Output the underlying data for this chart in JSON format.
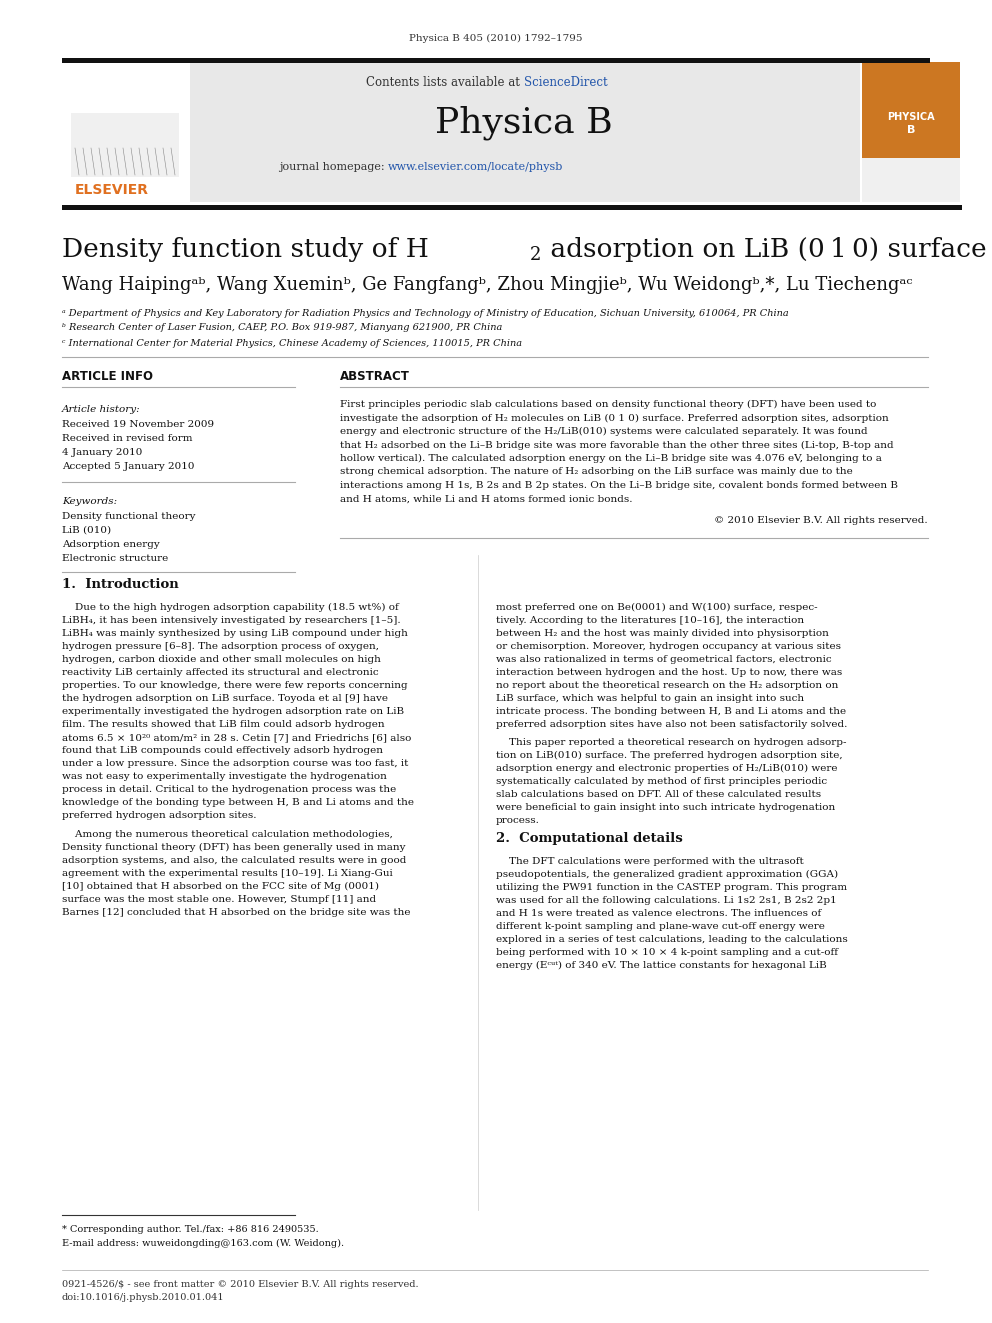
{
  "page_header": "Physica B 405 (2010) 1792–1795",
  "journal_name": "Physica B",
  "journal_url": "www.elsevier.com/locate/physb",
  "contents_text": "Contents lists available at ScienceDirect",
  "affil_a": "ᵃ Department of Physics and Key Laboratory for Radiation Physics and Technology of Ministry of Education, Sichuan University, 610064, PR China",
  "affil_b": "ᵇ Research Center of Laser Fusion, CAEP, P.O. Box 919-987, Mianyang 621900, PR China",
  "affil_c": "ᶜ International Center for Material Physics, Chinese Academy of Sciences, 110015, PR China",
  "article_history_title": "Article history:",
  "received1": "Received 19 November 2009",
  "received2": "Received in revised form",
  "received2b": "4 January 2010",
  "accepted": "Accepted 5 January 2010",
  "keywords_title": "Keywords:",
  "keyword1": "Density functional theory",
  "keyword2": "LiB (010)",
  "keyword3": "Adsorption energy",
  "keyword4": "Electronic structure",
  "copyright": "© 2010 Elsevier B.V. All rights reserved.",
  "section1_title": "1.  Introduction",
  "section2_title": "2.  Computational details",
  "footnote1": "* Corresponding author. Tel./fax: +86 816 2490535.",
  "footnote2": "E-mail address: wuweidongding@163.com (W. Weidong).",
  "footer1": "0921-4526/$ - see front matter © 2010 Elsevier B.V. All rights reserved.",
  "footer2": "doi:10.1016/j.physb.2010.01.041",
  "bg_color": "#ffffff",
  "blue": "#2255aa",
  "orange_elsevier": "#e07020",
  "abstract_lines": [
    "First principles periodic slab calculations based on density functional theory (DFT) have been used to",
    "investigate the adsorption of H₂ molecules on LiB (0 1 0) surface. Preferred adsorption sites, adsorption",
    "energy and electronic structure of the H₂/LiB(010) systems were calculated separately. It was found",
    "that H₂ adsorbed on the Li–B bridge site was more favorable than the other three sites (Li-top, B-top and",
    "hollow vertical). The calculated adsorption energy on the Li–B bridge site was 4.076 eV, belonging to a",
    "strong chemical adsorption. The nature of H₂ adsorbing on the LiB surface was mainly due to the",
    "interactions among H 1s, B 2s and B 2p states. On the Li–B bridge site, covalent bonds formed between B",
    "and H atoms, while Li and H atoms formed ionic bonds."
  ],
  "intro1_lines": [
    "    Due to the high hydrogen adsorption capability (18.5 wt%) of",
    "LiBH₄, it has been intensively investigated by researchers [1–5].",
    "LiBH₄ was mainly synthesized by using LiB compound under high",
    "hydrogen pressure [6–8]. The adsorption process of oxygen,",
    "hydrogen, carbon dioxide and other small molecules on high",
    "reactivity LiB certainly affected its structural and electronic",
    "properties. To our knowledge, there were few reports concerning",
    "the hydrogen adsorption on LiB surface. Toyoda et al [9] have",
    "experimentally investigated the hydrogen adsorption rate on LiB",
    "film. The results showed that LiB film could adsorb hydrogen",
    "atoms 6.5 × 10²⁰ atom/m² in 28 s. Cetin [7] and Friedrichs [6] also",
    "found that LiB compounds could effectively adsorb hydrogen",
    "under a low pressure. Since the adsorption course was too fast, it",
    "was not easy to experimentally investigate the hydrogenation",
    "process in detail. Critical to the hydrogenation process was the",
    "knowledge of the bonding type between H, B and Li atoms and the",
    "preferred hydrogen adsorption sites."
  ],
  "intro2_lines": [
    "    Among the numerous theoretical calculation methodologies,",
    "Density functional theory (DFT) has been generally used in many",
    "adsorption systems, and also, the calculated results were in good",
    "agreement with the experimental results [10–19]. Li Xiang-Gui",
    "[10] obtained that H absorbed on the FCC site of Mg (0001)",
    "surface was the most stable one. However, Stumpf [11] and",
    "Barnes [12] concluded that H absorbed on the bridge site was the"
  ],
  "right1_lines": [
    "most preferred one on Be(0001) and W(100) surface, respec-",
    "tively. According to the literatures [10–16], the interaction",
    "between H₂ and the host was mainly divided into physisorption",
    "or chemisorption. Moreover, hydrogen occupancy at various sites",
    "was also rationalized in terms of geometrical factors, electronic",
    "interaction between hydrogen and the host. Up to now, there was",
    "no report about the theoretical research on the H₂ adsorption on",
    "LiB surface, which was helpful to gain an insight into such",
    "intricate process. The bonding between H, B and Li atoms and the",
    "preferred adsorption sites have also not been satisfactorily solved."
  ],
  "right2_lines": [
    "    This paper reported a theoretical research on hydrogen adsorp-",
    "tion on LiB(010) surface. The preferred hydrogen adsorption site,",
    "adsorption energy and electronic properties of H₂/LiB(010) were",
    "systematically calculated by method of first principles periodic",
    "slab calculations based on DFT. All of these calculated results",
    "were beneficial to gain insight into such intricate hydrogenation",
    "process."
  ],
  "comp_lines": [
    "    The DFT calculations were performed with the ultrasoft",
    "pseudopotentials, the generalized gradient approximation (GGA)",
    "utilizing the PW91 function in the CASTEP program. This program",
    "was used for all the following calculations. Li 1s2 2s1, B 2s2 2p1",
    "and H 1s were treated as valence electrons. The influences of",
    "different k-point sampling and plane-wave cut-off energy were",
    "explored in a series of test calculations, leading to the calculations",
    "being performed with 10 × 10 × 4 k-point sampling and a cut-off",
    "energy (Eᶜᵘᵗ) of 340 eV. The lattice constants for hexagonal LiB"
  ]
}
